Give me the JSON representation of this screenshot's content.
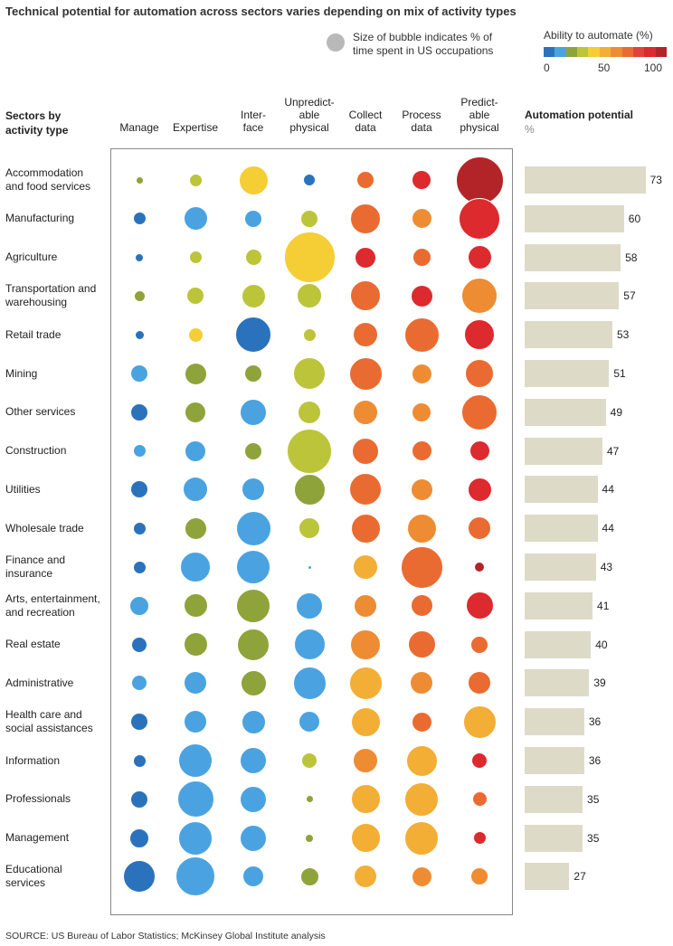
{
  "title": "Technical potential for automation across sectors varies depending on mix of activity types",
  "source": "SOURCE:  US Bureau of Labor Statistics; McKinsey Global Institute analysis",
  "legend": {
    "size_note": "Size of bubble indicates % of\ntime spent in US occupations",
    "color_title": "Ability to automate (%)",
    "color_ticks": [
      "0",
      "50",
      "100"
    ],
    "color_scale": [
      "#2b72bc",
      "#4aa3e0",
      "#8ea33a",
      "#bcc43a",
      "#f5cd35",
      "#f3ae35",
      "#ee8c33",
      "#ea6b31",
      "#e2423a",
      "#dc2a2f",
      "#b32428"
    ]
  },
  "row_header": "Sectors by\nactivity type",
  "automation_title": "Automation potential",
  "automation_unit": "%",
  "chart_data": {
    "type": "bubble-matrix",
    "title": "Technical potential for automation across sectors varies depending on mix of activity types",
    "columns": [
      "Manage",
      "Expertise",
      "Inter-\nface",
      "Unpredict-\nable\nphysical",
      "Collect\ndata",
      "Process\ndata",
      "Predict-\nable\nphysical"
    ],
    "rows": [
      {
        "label": "Accommodation\nand food services",
        "automation": 73,
        "colors": [
          "#8ea33a",
          "#bcc43a",
          "#f5cd35",
          "#2b72bc",
          "#ea6b31",
          "#dc2a2f",
          "#b32428"
        ],
        "sizes": [
          9,
          15,
          33,
          14,
          20,
          22,
          53
        ]
      },
      {
        "label": "Manufacturing",
        "automation": 60,
        "colors": [
          "#2b72bc",
          "#4aa3e0",
          "#4aa3e0",
          "#bcc43a",
          "#ea6b31",
          "#ee8c33",
          "#dc2a2f"
        ],
        "sizes": [
          15,
          27,
          20,
          20,
          34,
          23,
          46
        ]
      },
      {
        "label": "Agriculture",
        "automation": 58,
        "colors": [
          "#2b72bc",
          "#bcc43a",
          "#bcc43a",
          "#f5cd35",
          "#dc2a2f",
          "#ea6b31",
          "#dc2a2f"
        ],
        "sizes": [
          10,
          15,
          19,
          57,
          24,
          21,
          27
        ]
      },
      {
        "label": "Transportation and\nwarehousing",
        "automation": 57,
        "colors": [
          "#8ea33a",
          "#bcc43a",
          "#bcc43a",
          "#bcc43a",
          "#ea6b31",
          "#dc2a2f",
          "#ee8c33"
        ],
        "sizes": [
          13,
          20,
          27,
          28,
          34,
          25,
          40
        ]
      },
      {
        "label": "Retail trade",
        "automation": 53,
        "colors": [
          "#2b72bc",
          "#f5cd35",
          "#2b72bc",
          "#bcc43a",
          "#ea6b31",
          "#ea6b31",
          "#dc2a2f"
        ],
        "sizes": [
          11,
          17,
          40,
          15,
          28,
          39,
          34
        ]
      },
      {
        "label": "Mining",
        "automation": 51,
        "colors": [
          "#4aa3e0",
          "#8ea33a",
          "#8ea33a",
          "#bcc43a",
          "#ea6b31",
          "#ee8c33",
          "#ea6b31"
        ],
        "sizes": [
          20,
          25,
          20,
          36,
          37,
          23,
          32
        ]
      },
      {
        "label": "Other services",
        "automation": 49,
        "colors": [
          "#2b72bc",
          "#8ea33a",
          "#4aa3e0",
          "#bcc43a",
          "#ee8c33",
          "#ee8c33",
          "#ea6b31"
        ],
        "sizes": [
          20,
          24,
          30,
          26,
          28,
          22,
          40
        ]
      },
      {
        "label": "Construction",
        "automation": 47,
        "colors": [
          "#4aa3e0",
          "#4aa3e0",
          "#8ea33a",
          "#bcc43a",
          "#ea6b31",
          "#ea6b31",
          "#dc2a2f"
        ],
        "sizes": [
          15,
          24,
          20,
          50,
          30,
          23,
          23
        ]
      },
      {
        "label": "Utilities",
        "automation": 44,
        "colors": [
          "#2b72bc",
          "#4aa3e0",
          "#4aa3e0",
          "#8ea33a",
          "#ea6b31",
          "#ee8c33",
          "#dc2a2f"
        ],
        "sizes": [
          20,
          28,
          26,
          35,
          36,
          25,
          27
        ]
      },
      {
        "label": "Wholesale trade",
        "automation": 44,
        "colors": [
          "#2b72bc",
          "#8ea33a",
          "#4aa3e0",
          "#bcc43a",
          "#ea6b31",
          "#ee8c33",
          "#ea6b31"
        ],
        "sizes": [
          15,
          25,
          39,
          24,
          33,
          33,
          26
        ]
      },
      {
        "label": "Finance and\ninsurance",
        "automation": 43,
        "colors": [
          "#2b72bc",
          "#4aa3e0",
          "#4aa3e0",
          "#4aa3e0",
          "#f3ae35",
          "#ea6b31",
          "#b32428"
        ],
        "sizes": [
          15,
          34,
          38,
          5,
          28,
          47,
          12
        ]
      },
      {
        "label": "Arts, entertainment,\nand recreation",
        "automation": 41,
        "colors": [
          "#4aa3e0",
          "#8ea33a",
          "#8ea33a",
          "#4aa3e0",
          "#ee8c33",
          "#ea6b31",
          "#dc2a2f"
        ],
        "sizes": [
          22,
          27,
          38,
          30,
          26,
          25,
          31
        ]
      },
      {
        "label": "Real estate",
        "automation": 40,
        "colors": [
          "#2b72bc",
          "#8ea33a",
          "#8ea33a",
          "#4aa3e0",
          "#ee8c33",
          "#ea6b31",
          "#ea6b31"
        ],
        "sizes": [
          18,
          27,
          36,
          35,
          34,
          31,
          20
        ]
      },
      {
        "label": "Administrative",
        "automation": 39,
        "colors": [
          "#4aa3e0",
          "#4aa3e0",
          "#8ea33a",
          "#4aa3e0",
          "#f3ae35",
          "#ee8c33",
          "#ea6b31"
        ],
        "sizes": [
          18,
          26,
          29,
          37,
          37,
          26,
          26
        ]
      },
      {
        "label": "Health care and\nsocial assistances",
        "automation": 36,
        "colors": [
          "#2b72bc",
          "#4aa3e0",
          "#4aa3e0",
          "#4aa3e0",
          "#f3ae35",
          "#ea6b31",
          "#f3ae35"
        ],
        "sizes": [
          20,
          26,
          27,
          24,
          33,
          23,
          37
        ]
      },
      {
        "label": "Information",
        "automation": 36,
        "colors": [
          "#2b72bc",
          "#4aa3e0",
          "#4aa3e0",
          "#bcc43a",
          "#ee8c33",
          "#f3ae35",
          "#dc2a2f"
        ],
        "sizes": [
          15,
          38,
          30,
          18,
          28,
          35,
          18
        ]
      },
      {
        "label": "Professionals",
        "automation": 35,
        "colors": [
          "#2b72bc",
          "#4aa3e0",
          "#4aa3e0",
          "#8ea33a",
          "#f3ae35",
          "#f3ae35",
          "#ea6b31"
        ],
        "sizes": [
          20,
          41,
          30,
          9,
          33,
          38,
          17
        ]
      },
      {
        "label": "Management",
        "automation": 35,
        "colors": [
          "#2b72bc",
          "#4aa3e0",
          "#4aa3e0",
          "#8ea33a",
          "#f3ae35",
          "#f3ae35",
          "#dc2a2f"
        ],
        "sizes": [
          22,
          38,
          30,
          10,
          33,
          38,
          15
        ]
      },
      {
        "label": "Educational\nservices",
        "automation": 27,
        "colors": [
          "#2b72bc",
          "#4aa3e0",
          "#4aa3e0",
          "#8ea33a",
          "#f3ae35",
          "#ee8c33",
          "#ee8c33"
        ],
        "sizes": [
          36,
          44,
          24,
          21,
          26,
          23,
          20
        ]
      }
    ]
  }
}
